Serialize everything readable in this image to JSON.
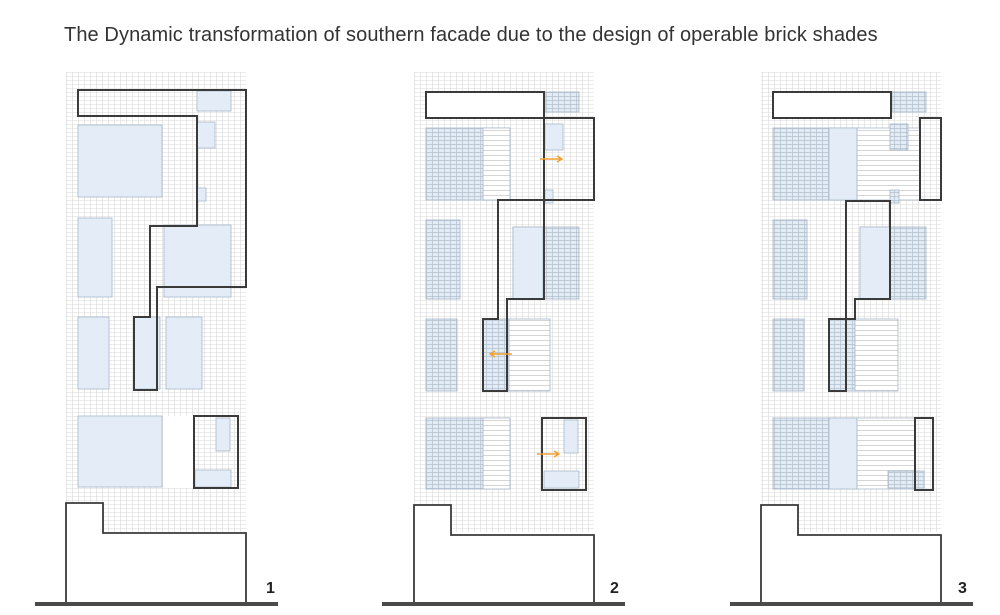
{
  "title": "The Dynamic transformation of southern facade due to the design of operable brick shades",
  "panels": [
    {
      "number": "1",
      "state": "closed"
    },
    {
      "number": "2",
      "state": "sliding",
      "arrows": [
        "right",
        "left",
        "right"
      ]
    },
    {
      "number": "3",
      "state": "open"
    }
  ],
  "colors": {
    "grid_line": "#d6d6d6",
    "window_fill": "#e4edf7",
    "window_stroke": "#9fb0c4",
    "outline": "#3a3a3a",
    "ground": "#4a4a4a",
    "arrow": "#f0a030",
    "hatch": "#aab6c4"
  }
}
